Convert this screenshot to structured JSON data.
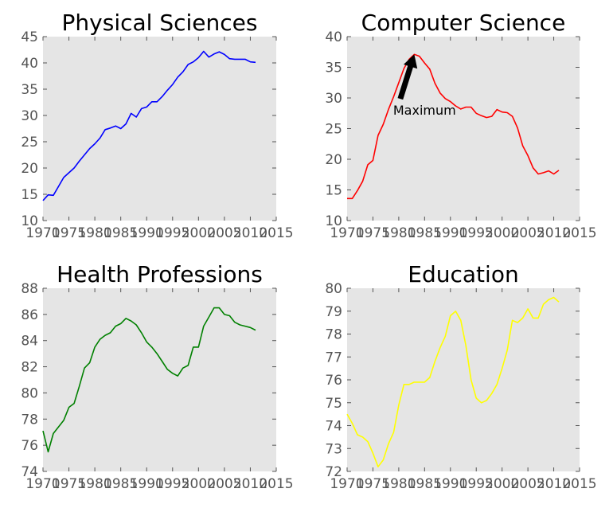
{
  "chart_data": [
    {
      "type": "line",
      "title": "Physical Sciences",
      "xlabel": "",
      "ylabel": "",
      "xlim": [
        1970,
        2015
      ],
      "ylim": [
        10,
        45
      ],
      "xticks": [
        "1970",
        "1975",
        "1980",
        "1985",
        "1990",
        "1995",
        "2000",
        "2005",
        "2010",
        "2015"
      ],
      "yticks": [
        "10",
        "15",
        "20",
        "25",
        "30",
        "35",
        "40",
        "45"
      ],
      "color": "#0000ff",
      "grid": false,
      "x": [
        1970,
        1971,
        1972,
        1973,
        1974,
        1975,
        1976,
        1977,
        1978,
        1979,
        1980,
        1981,
        1982,
        1983,
        1984,
        1985,
        1986,
        1987,
        1988,
        1989,
        1990,
        1991,
        1992,
        1993,
        1994,
        1995,
        1996,
        1997,
        1998,
        1999,
        2000,
        2001,
        2002,
        2003,
        2004,
        2005,
        2006,
        2007,
        2008,
        2009,
        2010,
        2011
      ],
      "values": [
        13.8,
        14.9,
        14.8,
        16.5,
        18.2,
        19.1,
        20.0,
        21.3,
        22.5,
        23.7,
        24.6,
        25.7,
        27.3,
        27.6,
        28.0,
        27.5,
        28.4,
        30.4,
        29.7,
        31.3,
        31.6,
        32.6,
        32.6,
        33.6,
        34.8,
        35.9,
        37.3,
        38.3,
        39.7,
        40.2,
        41.0,
        42.2,
        41.1,
        41.7,
        42.1,
        41.6,
        40.8,
        40.7,
        40.7,
        40.7,
        40.2,
        40.1
      ]
    },
    {
      "type": "line",
      "title": "Computer Science",
      "xlabel": "",
      "ylabel": "",
      "xlim": [
        1970,
        2015
      ],
      "ylim": [
        10,
        40
      ],
      "xticks": [
        "1970",
        "1975",
        "1980",
        "1985",
        "1990",
        "1995",
        "2000",
        "2005",
        "2010",
        "2015"
      ],
      "yticks": [
        "10",
        "15",
        "20",
        "25",
        "30",
        "35",
        "40"
      ],
      "color": "#ff0000",
      "grid": false,
      "x": [
        1970,
        1971,
        1972,
        1973,
        1974,
        1975,
        1976,
        1977,
        1978,
        1979,
        1980,
        1981,
        1982,
        1983,
        1984,
        1985,
        1986,
        1987,
        1988,
        1989,
        1990,
        1991,
        1992,
        1993,
        1994,
        1995,
        1996,
        1997,
        1998,
        1999,
        2000,
        2001,
        2002,
        2003,
        2004,
        2005,
        2006,
        2007,
        2008,
        2009,
        2010,
        2011
      ],
      "values": [
        13.6,
        13.6,
        14.9,
        16.4,
        19.1,
        19.8,
        23.9,
        25.7,
        28.1,
        30.2,
        32.5,
        34.8,
        36.3,
        37.1,
        36.8,
        35.7,
        34.7,
        32.4,
        30.8,
        29.9,
        29.4,
        28.7,
        28.2,
        28.5,
        28.5,
        27.5,
        27.1,
        26.8,
        27.0,
        28.1,
        27.7,
        27.6,
        27.0,
        25.1,
        22.2,
        20.6,
        18.6,
        17.6,
        17.8,
        18.1,
        17.6,
        18.2
      ],
      "annotations": [
        {
          "text": "Maximum",
          "x": 1983,
          "y": 37.1,
          "text_x": 1980,
          "text_y": 27
        }
      ]
    },
    {
      "type": "line",
      "title": "Health Professions",
      "xlabel": "",
      "ylabel": "",
      "xlim": [
        1970,
        2015
      ],
      "ylim": [
        74,
        88
      ],
      "xticks": [
        "1970",
        "1975",
        "1980",
        "1985",
        "1990",
        "1995",
        "2000",
        "2005",
        "2010",
        "2015"
      ],
      "yticks": [
        "74",
        "76",
        "78",
        "80",
        "82",
        "84",
        "86",
        "88"
      ],
      "color": "#008000",
      "grid": false,
      "x": [
        1970,
        1971,
        1972,
        1973,
        1974,
        1975,
        1976,
        1977,
        1978,
        1979,
        1980,
        1981,
        1982,
        1983,
        1984,
        1985,
        1986,
        1987,
        1988,
        1989,
        1990,
        1991,
        1992,
        1993,
        1994,
        1995,
        1996,
        1997,
        1998,
        1999,
        2000,
        2001,
        2002,
        2003,
        2004,
        2005,
        2006,
        2007,
        2008,
        2009,
        2010,
        2011
      ],
      "values": [
        77.1,
        75.5,
        76.9,
        77.4,
        77.9,
        78.9,
        79.2,
        80.5,
        81.9,
        82.3,
        83.5,
        84.1,
        84.4,
        84.6,
        85.1,
        85.3,
        85.7,
        85.5,
        85.2,
        84.6,
        83.9,
        83.5,
        83.0,
        82.4,
        81.8,
        81.5,
        81.3,
        81.9,
        82.1,
        83.5,
        83.5,
        85.1,
        85.8,
        86.5,
        86.5,
        86.0,
        85.9,
        85.4,
        85.2,
        85.1,
        85.0,
        84.8
      ]
    },
    {
      "type": "line",
      "title": "Education",
      "xlabel": "",
      "ylabel": "",
      "xlim": [
        1970,
        2015
      ],
      "ylim": [
        72,
        80
      ],
      "xticks": [
        "1970",
        "1975",
        "1980",
        "1985",
        "1990",
        "1995",
        "2000",
        "2005",
        "2010",
        "2015"
      ],
      "yticks": [
        "72",
        "73",
        "74",
        "75",
        "76",
        "77",
        "78",
        "79",
        "80"
      ],
      "color": "#ffff00",
      "grid": false,
      "x": [
        1970,
        1971,
        1972,
        1973,
        1974,
        1975,
        1976,
        1977,
        1978,
        1979,
        1980,
        1981,
        1982,
        1983,
        1984,
        1985,
        1986,
        1987,
        1988,
        1989,
        1990,
        1991,
        1992,
        1993,
        1994,
        1995,
        1996,
        1997,
        1998,
        1999,
        2000,
        2001,
        2002,
        2003,
        2004,
        2005,
        2006,
        2007,
        2008,
        2009,
        2010,
        2011
      ],
      "values": [
        74.5,
        74.1,
        73.6,
        73.5,
        73.3,
        72.8,
        72.2,
        72.5,
        73.2,
        73.7,
        74.9,
        75.8,
        75.8,
        75.9,
        75.9,
        75.9,
        76.1,
        76.8,
        77.4,
        77.9,
        78.8,
        79.0,
        78.6,
        77.5,
        76.0,
        75.2,
        75.0,
        75.1,
        75.4,
        75.8,
        76.5,
        77.3,
        78.6,
        78.5,
        78.7,
        79.1,
        78.7,
        78.7,
        79.3,
        79.5,
        79.6,
        79.4
      ]
    }
  ],
  "style": {
    "axes_background": "#e5e5e5",
    "tick_label_color": "#555555",
    "tick_color": "#555555",
    "title_color": "#000000",
    "arrow_color": "#000000"
  }
}
